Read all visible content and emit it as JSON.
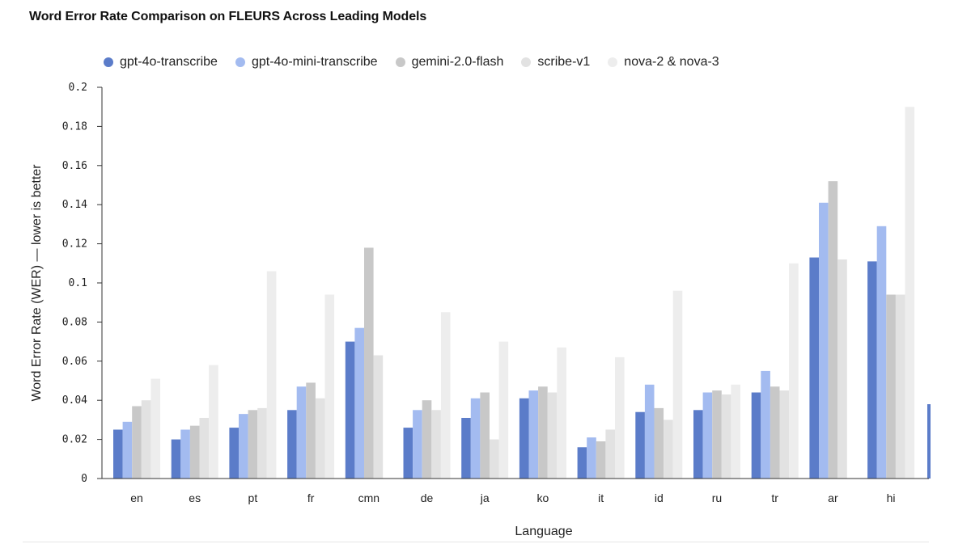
{
  "title": "Word Error Rate Comparison on FLEURS Across Leading Models",
  "chart_data": {
    "type": "bar",
    "title": "Word Error Rate Comparison on FLEURS Across Leading Models",
    "xlabel": "Language",
    "ylabel": "Word Error Rate (WER) — lower is better",
    "ylim": [
      0,
      0.2
    ],
    "yticks": [
      "0",
      "0.02",
      "0.04",
      "0.06",
      "0.08",
      "0.1",
      "0.12",
      "0.14",
      "0.16",
      "0.18",
      "0.2"
    ],
    "grid": false,
    "legend_position": "top",
    "categories": [
      "en",
      "es",
      "pt",
      "fr",
      "cmn",
      "de",
      "ja",
      "ko",
      "it",
      "id",
      "ru",
      "tr",
      "ar",
      "hi"
    ],
    "series": [
      {
        "name": "gpt-4o-transcribe",
        "color": "#5b7cc9",
        "values": [
          0.025,
          0.02,
          0.026,
          0.035,
          0.07,
          0.026,
          0.031,
          0.041,
          0.016,
          0.034,
          0.035,
          0.044,
          0.113,
          0.111
        ]
      },
      {
        "name": "gpt-4o-mini-transcribe",
        "color": "#a3bbf0",
        "values": [
          0.029,
          0.025,
          0.033,
          0.047,
          0.077,
          0.035,
          0.041,
          0.045,
          0.021,
          0.048,
          0.044,
          0.055,
          0.141,
          0.129
        ]
      },
      {
        "name": "gemini-2.0-flash",
        "color": "#c8c8c8",
        "values": [
          0.037,
          0.027,
          0.035,
          0.049,
          0.118,
          0.04,
          0.044,
          0.047,
          0.019,
          0.036,
          0.045,
          0.047,
          0.152,
          0.094
        ]
      },
      {
        "name": "scribe-v1",
        "color": "#e2e2e2",
        "values": [
          0.04,
          0.031,
          0.036,
          0.041,
          0.063,
          0.035,
          0.02,
          0.044,
          0.025,
          0.03,
          0.043,
          0.045,
          0.112,
          0.094
        ]
      },
      {
        "name": "nova-2 & nova-3",
        "color": "#ededed",
        "values": [
          0.051,
          0.058,
          0.106,
          0.094,
          null,
          0.085,
          0.07,
          0.067,
          0.062,
          0.096,
          0.048,
          0.11,
          null,
          0.19
        ]
      }
    ]
  }
}
